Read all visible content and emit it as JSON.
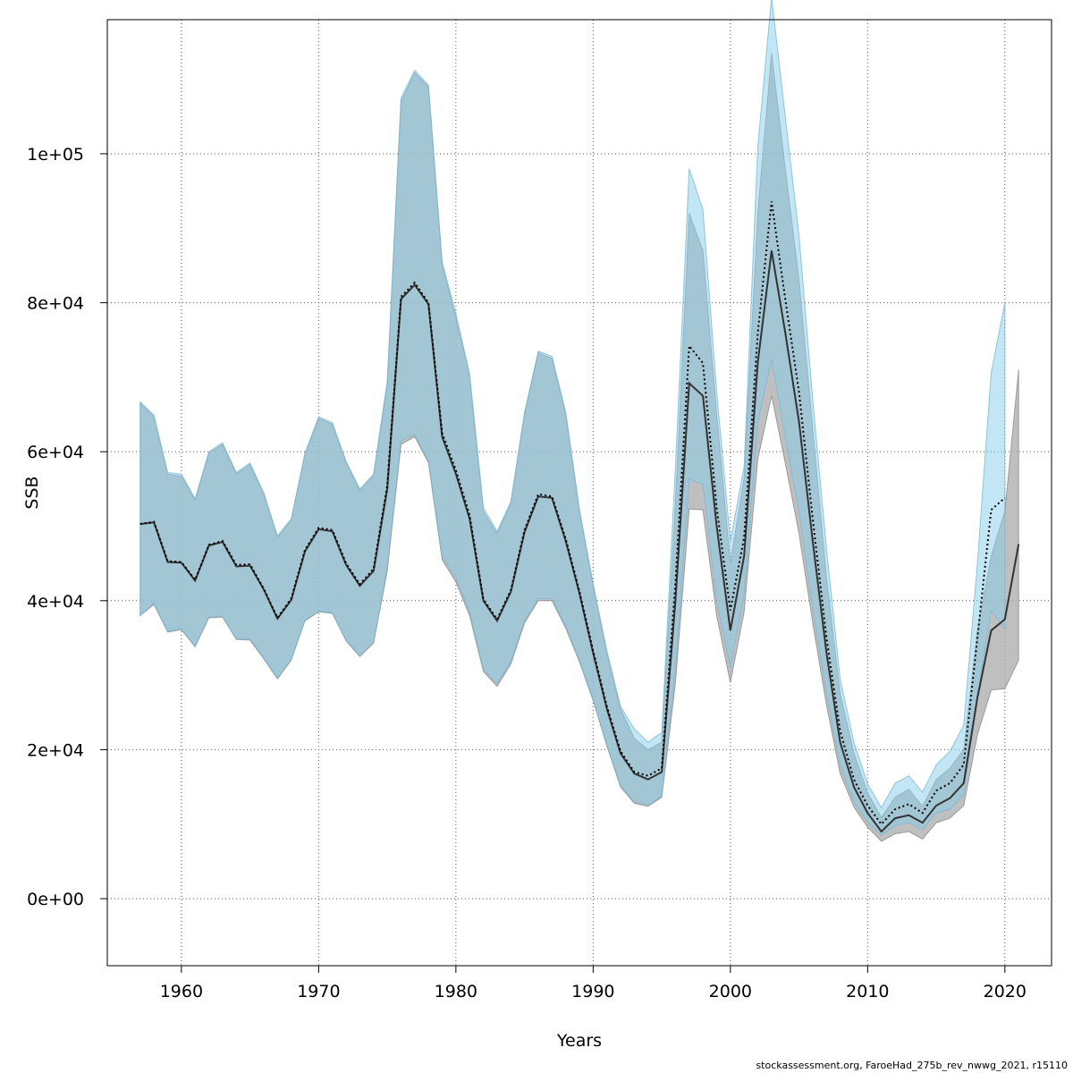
{
  "chart_data": {
    "type": "area",
    "title": "",
    "xlabel": "Years",
    "ylabel": "SSB",
    "xlim": [
      1954.6,
      2023.4
    ],
    "ylim": [
      -9000,
      118000
    ],
    "x_ticks": [
      1960,
      1970,
      1980,
      1990,
      2000,
      2010,
      2020
    ],
    "y_ticks": [
      0,
      20000,
      40000,
      60000,
      80000,
      100000
    ],
    "y_tick_labels": [
      "0e+00",
      "2e+04",
      "4e+04",
      "6e+04",
      "8e+04",
      "1e+05"
    ],
    "grid": true,
    "colors": {
      "band_a": "#a9a9a9",
      "band_b": "#87ceeb",
      "line_a": "#333333",
      "line_b": "#000000",
      "grid": "#555555"
    },
    "series": [
      {
        "style": "solid",
        "x": [
          1957,
          1958,
          1959,
          1960,
          1961,
          1962,
          1963,
          1964,
          1965,
          1966,
          1967,
          1968,
          1969,
          1970,
          1971,
          1972,
          1973,
          1974,
          1975,
          1976,
          1977,
          1978,
          1979,
          1980,
          1981,
          1982,
          1983,
          1984,
          1985,
          1986,
          1987,
          1988,
          1989,
          1990,
          1991,
          1992,
          1993,
          1994,
          1995,
          1996,
          1997,
          1998,
          1999,
          2000,
          2001,
          2002,
          2003,
          2004,
          2005,
          2006,
          2007,
          2008,
          2009,
          2010,
          2011,
          2012,
          2013,
          2014,
          2015,
          2016,
          2017,
          2018,
          2019,
          2020,
          2021
        ],
        "values": [
          50300,
          50500,
          45200,
          45100,
          42700,
          47400,
          47900,
          44600,
          44700,
          41500,
          37600,
          40100,
          46600,
          49600,
          49300,
          44800,
          42000,
          44000,
          55000,
          80500,
          82400,
          79800,
          62000,
          57000,
          51000,
          40000,
          37300,
          41200,
          49200,
          54000,
          53800,
          48000,
          41000,
          33000,
          25500,
          19500,
          16800,
          16000,
          17000,
          40000,
          69200,
          67500,
          50000,
          36000,
          46000,
          72000,
          87000,
          76000,
          64000,
          48000,
          33000,
          21000,
          15000,
          11500,
          9000,
          10800,
          11200,
          10200,
          12500,
          13500,
          15500,
          27000,
          36000,
          37500,
          47600
        ],
        "lower": [
          38000,
          39500,
          35800,
          36100,
          33800,
          37700,
          37800,
          34800,
          34700,
          32200,
          29500,
          32000,
          37300,
          38500,
          38300,
          34600,
          32500,
          34300,
          44000,
          61000,
          62000,
          58500,
          45500,
          42500,
          38000,
          30500,
          28500,
          31500,
          37000,
          40000,
          40000,
          36300,
          31800,
          26600,
          20500,
          15000,
          12800,
          12400,
          13600,
          29000,
          52300,
          52200,
          38000,
          29000,
          38500,
          59000,
          67500,
          58500,
          49000,
          37000,
          26000,
          16800,
          12300,
          9600,
          7700,
          8700,
          9000,
          8000,
          10200,
          10800,
          12500,
          22000,
          28000,
          28200,
          32000
        ],
        "upper": [
          66500,
          64700,
          57000,
          56700,
          53500,
          59800,
          61000,
          57000,
          58300,
          54300,
          48500,
          50800,
          59600,
          64500,
          63700,
          58500,
          54800,
          56800,
          69000,
          107000,
          110900,
          109000,
          85000,
          78000,
          70000,
          52000,
          49000,
          53000,
          65000,
          73300,
          72500,
          65000,
          52000,
          42000,
          33000,
          25500,
          21500,
          20000,
          21000,
          53000,
          92000,
          87000,
          65000,
          45000,
          56500,
          92000,
          113500,
          98000,
          83000,
          63000,
          43000,
          27500,
          19500,
          14200,
          10900,
          13600,
          14700,
          12400,
          16000,
          17500,
          20000,
          36000,
          46000,
          52000,
          71000
        ]
      },
      {
        "style": "dotted",
        "x": [
          1957,
          1958,
          1959,
          1960,
          1961,
          1962,
          1963,
          1964,
          1965,
          1966,
          1967,
          1968,
          1969,
          1970,
          1971,
          1972,
          1973,
          1974,
          1975,
          1976,
          1977,
          1978,
          1979,
          1980,
          1981,
          1982,
          1983,
          1984,
          1985,
          1986,
          1987,
          1988,
          1989,
          1990,
          1991,
          1992,
          1993,
          1994,
          1995,
          1996,
          1997,
          1998,
          1999,
          2000,
          2001,
          2002,
          2003,
          2004,
          2005,
          2006,
          2007,
          2008,
          2009,
          2010,
          2011,
          2012,
          2013,
          2014,
          2015,
          2016,
          2017,
          2018,
          2019,
          2020
        ],
        "values": [
          50300,
          50600,
          45300,
          45200,
          42800,
          47500,
          48000,
          44800,
          44900,
          41600,
          37700,
          40300,
          46800,
          49800,
          49500,
          45000,
          42200,
          44300,
          55500,
          80800,
          82700,
          80000,
          62500,
          57500,
          51500,
          40200,
          37500,
          41400,
          49500,
          54300,
          54000,
          48300,
          41300,
          33300,
          25800,
          19800,
          17000,
          16500,
          17500,
          42500,
          74200,
          71900,
          52500,
          38700,
          48500,
          76000,
          93600,
          80500,
          68000,
          51000,
          35000,
          22500,
          16000,
          12500,
          10000,
          12000,
          12700,
          11500,
          14500,
          15500,
          18000,
          35000,
          52200,
          53800
        ],
        "lower": [
          38000,
          39700,
          35900,
          36200,
          33900,
          37800,
          37900,
          34900,
          34900,
          32300,
          29600,
          32100,
          37400,
          38600,
          38400,
          34700,
          32600,
          34400,
          44500,
          61500,
          62300,
          58800,
          46000,
          43000,
          38500,
          30800,
          28800,
          31800,
          37300,
          40300,
          40300,
          36600,
          32000,
          26800,
          20700,
          15200,
          13000,
          12600,
          13800,
          31000,
          56300,
          55600,
          40000,
          31000,
          41000,
          64000,
          72400,
          62000,
          52000,
          39000,
          27500,
          17800,
          13000,
          10300,
          8500,
          9800,
          10200,
          9300,
          11500,
          12000,
          14000,
          27000,
          38700,
          36200
        ],
        "upper": [
          66700,
          64900,
          57200,
          57000,
          53700,
          60000,
          61200,
          57200,
          58500,
          54500,
          48700,
          51000,
          59800,
          64700,
          63900,
          58700,
          55000,
          57000,
          69500,
          107500,
          111200,
          109200,
          85500,
          78500,
          70500,
          52500,
          49300,
          53300,
          65300,
          73500,
          72800,
          65300,
          52300,
          42300,
          33300,
          25800,
          22800,
          21000,
          22300,
          58000,
          98000,
          92500,
          68000,
          48000,
          58000,
          101000,
          121000,
          105000,
          89000,
          67000,
          47000,
          29500,
          21000,
          15400,
          12200,
          15500,
          16500,
          14300,
          18000,
          19800,
          23300,
          45000,
          70600,
          80000
        ]
      }
    ],
    "footer": "stockassessment.org, FaroeHad_275b_rev_nwwg_2021, r15110"
  }
}
